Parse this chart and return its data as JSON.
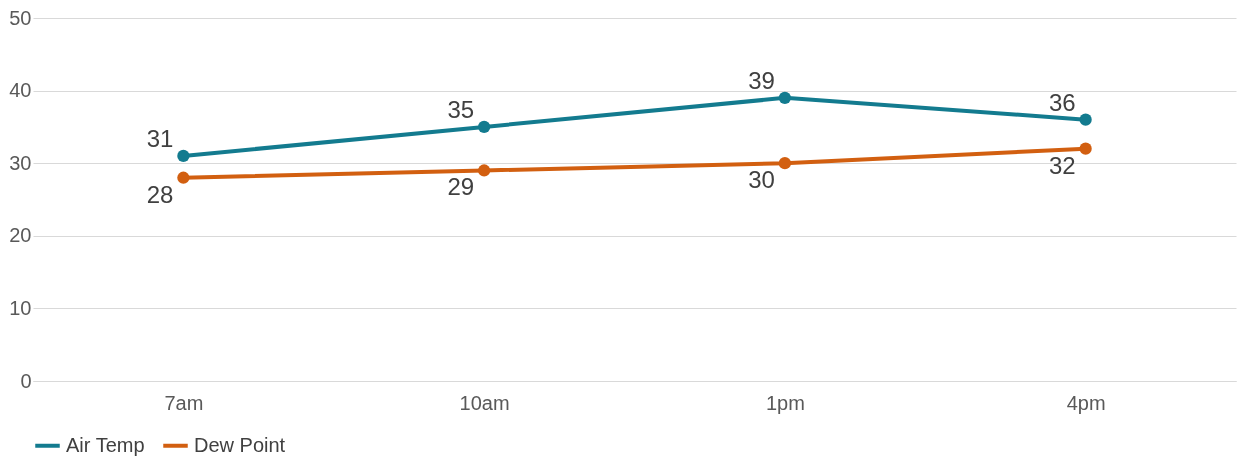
{
  "chart_data": {
    "type": "line",
    "categories": [
      "7am",
      "10am",
      "1pm",
      "4pm"
    ],
    "series": [
      {
        "name": "Air Temp",
        "color": "#137b8f",
        "values": [
          31,
          35,
          39,
          36
        ]
      },
      {
        "name": "Dew Point",
        "color": "#d25f10",
        "values": [
          28,
          29,
          30,
          32
        ]
      }
    ],
    "ylim": [
      0,
      50
    ],
    "yticks": [
      0,
      10,
      20,
      30,
      40,
      50
    ],
    "grid": "y",
    "legend": "bottom",
    "marker": "circle",
    "line_style": "solid",
    "data_labels": true
  }
}
